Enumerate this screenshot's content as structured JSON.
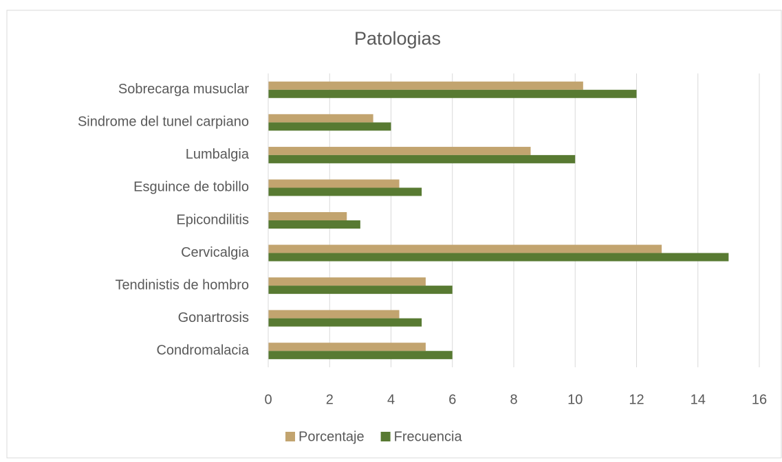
{
  "chart_data": {
    "type": "hbar",
    "title": "Patologias",
    "categories": [
      "Sobrecarga musuclar",
      "Sindrome del tunel carpiano",
      "Lumbalgia",
      "Esguince de tobillo",
      "Epicondilitis",
      "Cervicalgia",
      "Tendinistis de hombro",
      "Gonartrosis",
      "Condromalacia"
    ],
    "series": [
      {
        "name": "Porcentaje",
        "color": "#c2a46f",
        "values": [
          10.26,
          3.42,
          8.55,
          4.27,
          2.56,
          12.82,
          5.13,
          4.27,
          5.13
        ]
      },
      {
        "name": "Frecuencia",
        "color": "#587a32",
        "values": [
          12,
          4,
          10,
          5,
          3,
          15,
          6,
          5,
          6
        ]
      }
    ],
    "xlim": [
      0,
      16
    ],
    "xticks": [
      0,
      2,
      4,
      6,
      8,
      10,
      12,
      14,
      16
    ],
    "grid": true,
    "legend": "bottom"
  }
}
